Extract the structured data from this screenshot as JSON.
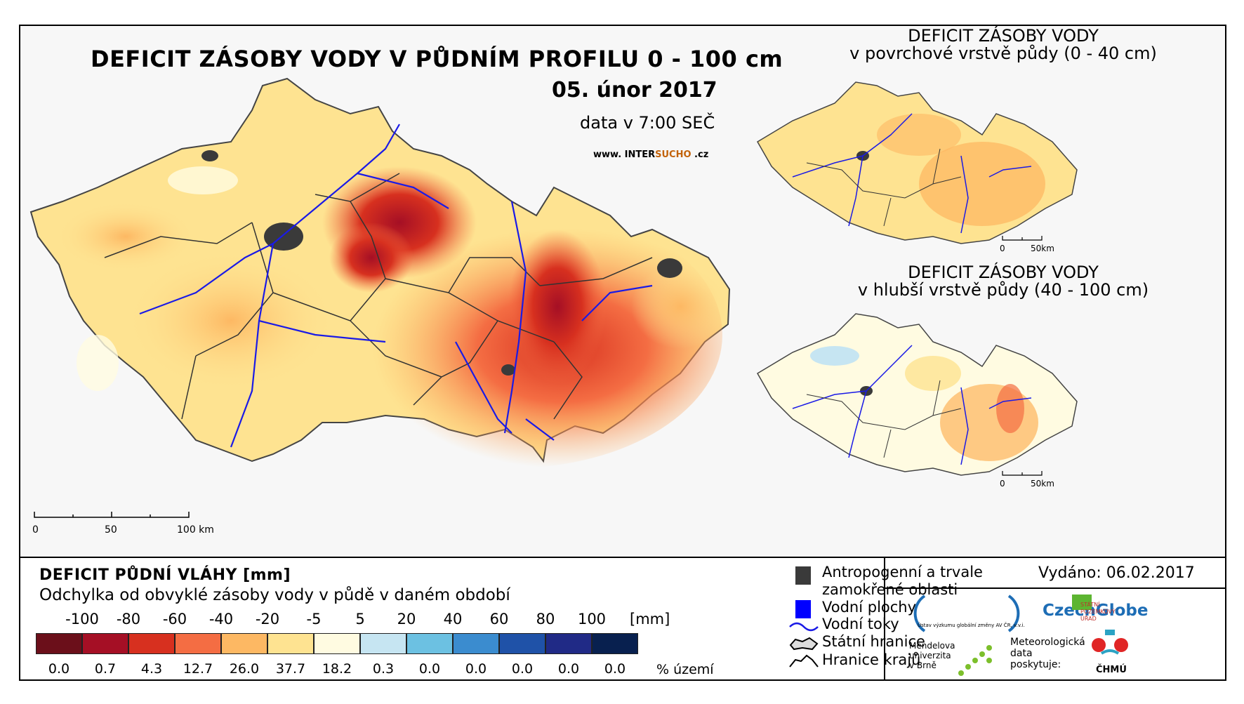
{
  "main_map": {
    "title": "DEFICIT ZÁSOBY VODY V PŮDNÍM PROFILU 0 - 100 cm",
    "date": "05. únor 2017",
    "time_note": "data v 7:00 SEČ",
    "website_prefix": "www. INTER",
    "website_highlight": "SUCHO",
    "website_suffix": " .cz",
    "scale_labels": [
      "0",
      "50",
      "100 km"
    ]
  },
  "inset_top": {
    "title_line1": "DEFICIT ZÁSOBY VODY",
    "title_line2": "v povrchové vrstvě půdy (0 - 40 cm)",
    "scale_labels": [
      "0",
      "50km"
    ]
  },
  "inset_bottom": {
    "title_line1": "DEFICIT ZÁSOBY VODY",
    "title_line2": "v hlubší vrstvě půdy (40 - 100 cm)",
    "scale_labels": [
      "0",
      "50km"
    ]
  },
  "legend": {
    "title": "DEFICIT PŮDNÍ VLÁHY [mm]",
    "subtitle": "Odchylka od obvyklé zásoby vody v půdě v daném období",
    "unit": "[mm]",
    "pct_unit": "% území",
    "breaks": [
      "-100",
      "-80",
      "-60",
      "-40",
      "-20",
      "-5",
      "5",
      "20",
      "40",
      "60",
      "80",
      "100"
    ],
    "classes": [
      {
        "color": "#6b0f1a",
        "pct": "0.0"
      },
      {
        "color": "#a50f25",
        "pct": "0.7"
      },
      {
        "color": "#d7301f",
        "pct": "4.3"
      },
      {
        "color": "#f46d43",
        "pct": "12.7"
      },
      {
        "color": "#fdb863",
        "pct": "26.0"
      },
      {
        "color": "#fee391",
        "pct": "37.7"
      },
      {
        "color": "#fffbe1",
        "pct": "18.2"
      },
      {
        "color": "#c6e5f2",
        "pct": "0.3"
      },
      {
        "color": "#6cc1e2",
        "pct": "0.0"
      },
      {
        "color": "#3b8ccf",
        "pct": "0.0"
      },
      {
        "color": "#1f52a8",
        "pct": "0.0"
      },
      {
        "color": "#202a86",
        "pct": "0.0"
      },
      {
        "color": "#08204f",
        "pct": "0.0"
      }
    ]
  },
  "legend2": {
    "anthropogenic_line1": "Antropogenní a trvale",
    "anthropogenic_line2": "zamokřené oblasti",
    "water_bodies": "Vodní plochy",
    "rivers": "Vodní toky",
    "state_border": "Státní hranice",
    "region_border": "Hranice krajů",
    "colors": {
      "anthropogenic": "#3a3a3a",
      "water": "#0000ff",
      "river": "#1a1ae6"
    }
  },
  "issued": "Vydáno: 06.02.2017",
  "logos": {
    "czechglobe": "CzechGlobe",
    "czechglobe_sub": "Ústav výzkumu globální změny AV ČR, v.v.i.",
    "spu_line1": "STÁTNÍ",
    "spu_line2": "POZEMKOVÝ",
    "spu_line3": "ÚŘAD",
    "mendelu_line1": "Mendelova",
    "mendelu_line2": "univerzita",
    "mendelu_line3": "v Brně",
    "met_line1": "Meteorologická",
    "met_line2": "data",
    "met_line3": "poskytuje:",
    "chmu": "ČHMÚ"
  }
}
